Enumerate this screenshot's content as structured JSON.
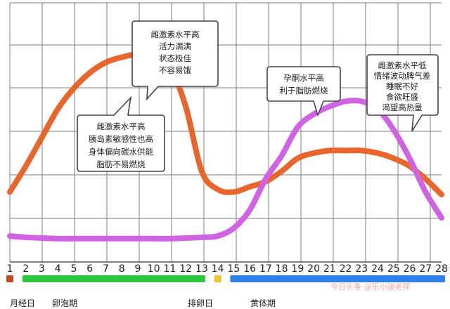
{
  "chart_data": {
    "type": "line",
    "x_unit": "day",
    "x": [
      1,
      2,
      3,
      4,
      5,
      6,
      7,
      8,
      9,
      10,
      11,
      12,
      13,
      14,
      15,
      16,
      17,
      18,
      19,
      20,
      21,
      22,
      23,
      24,
      25,
      26,
      27,
      28
    ],
    "xlim": [
      1,
      28
    ],
    "y_axis_labels": false,
    "grid": true,
    "series": [
      {
        "name": "",
        "color": "#e8652b",
        "values": [
          27,
          37,
          48,
          59,
          67,
          73,
          77,
          79,
          80,
          78,
          75,
          60,
          35,
          28,
          27,
          29,
          31,
          35,
          40,
          42,
          43,
          43,
          43,
          42,
          40,
          37,
          32,
          26
        ]
      },
      {
        "name": "",
        "color": "#cf63e2",
        "values": [
          10,
          9.5,
          9.2,
          9,
          9,
          9,
          9,
          9,
          9,
          9,
          9,
          9.2,
          9.5,
          10,
          13,
          20,
          32,
          41,
          52,
          57,
          60,
          62,
          62,
          59,
          51,
          40,
          27,
          17
        ]
      }
    ],
    "callouts": [
      {
        "lines": [
          "雌激素水平高",
          "活力满满",
          "状态极佳",
          "不容易饿"
        ]
      },
      {
        "lines": [
          "雌激素水平高",
          "胰岛素敏感性也高",
          "身体偏向碳水供能",
          "脂肪不易燃烧"
        ]
      },
      {
        "lines": [
          "孕酮水平高",
          "利于脂肪燃烧"
        ]
      },
      {
        "lines": [
          "雌激素水平低",
          "情绪波动脾气差",
          "睡眠不好",
          "食欲旺盛",
          "渴望高热量"
        ]
      }
    ],
    "phases": [
      {
        "label": "月经日",
        "start_day": 1,
        "end_day": 1,
        "color": "#c9451e"
      },
      {
        "label": "卵泡期",
        "start_day": 2,
        "end_day": 13,
        "color": "#2cc63c"
      },
      {
        "label": "排卵日",
        "start_day": 14,
        "end_day": 14,
        "color": "#f2c12e"
      },
      {
        "label": "黄体期",
        "start_day": 15,
        "end_day": 28,
        "color": "#2f80e8"
      }
    ],
    "watermark": "今日头条 @乐小波老师"
  }
}
